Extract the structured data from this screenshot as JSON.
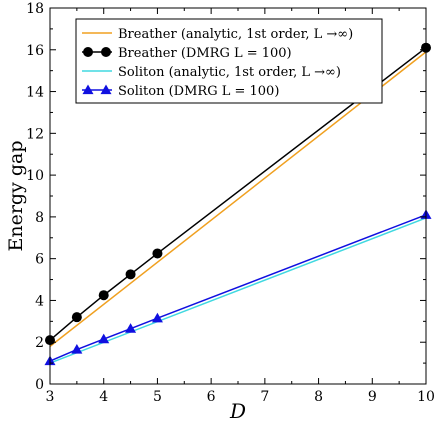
{
  "chart_data": {
    "type": "line",
    "title": "",
    "xlabel": "D",
    "ylabel": "Energy gap",
    "xlim": [
      3,
      10
    ],
    "ylim": [
      0,
      18
    ],
    "xticks": [
      3,
      4,
      5,
      6,
      7,
      8,
      9,
      10
    ],
    "yticks": [
      0,
      2,
      4,
      6,
      8,
      10,
      12,
      14,
      16,
      18
    ],
    "grid": false,
    "legend_position": "top-left",
    "series": [
      {
        "name": "Breather (analytic, 1st order, L →∞)",
        "style": "line",
        "color": "#f0a020",
        "x": [
          3,
          10
        ],
        "y": [
          1.8,
          15.9
        ]
      },
      {
        "name": "Breather (DMRG L = 100)",
        "style": "line-circle",
        "color": "#000000",
        "x": [
          3,
          3.5,
          4,
          4.5,
          5,
          10
        ],
        "y": [
          2.1,
          3.2,
          4.25,
          5.25,
          6.25,
          16.1
        ]
      },
      {
        "name": "Soliton (analytic, 1st order, L →∞)",
        "style": "line",
        "color": "#40d8e0",
        "x": [
          3,
          10
        ],
        "y": [
          1.0,
          7.95
        ]
      },
      {
        "name": "Soliton (DMRG L = 100)",
        "style": "line-triangle",
        "color": "#1010e0",
        "x": [
          3,
          3.5,
          4,
          4.5,
          5,
          10
        ],
        "y": [
          1.1,
          1.65,
          2.15,
          2.65,
          3.15,
          8.1
        ]
      }
    ]
  }
}
